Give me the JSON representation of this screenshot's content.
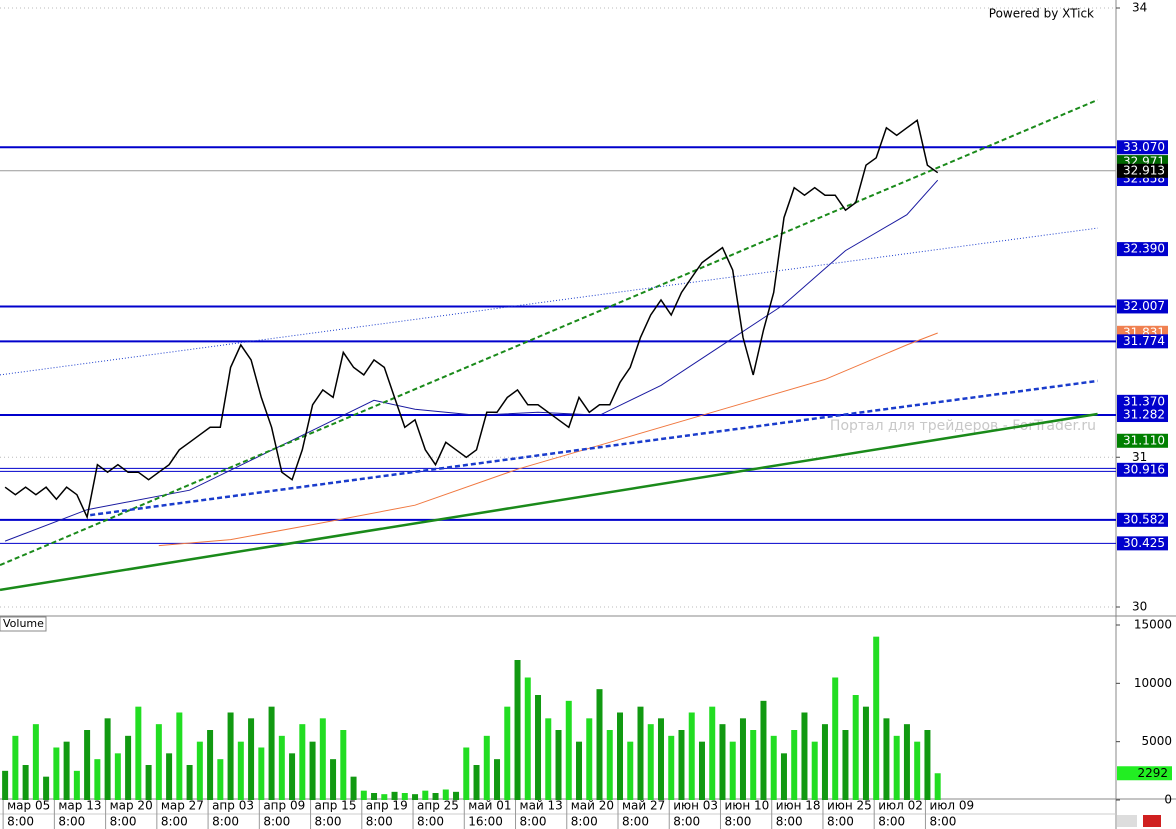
{
  "chart_data": {
    "type": "price-volume",
    "credit": "Powered by XTick",
    "watermark": "Портал для трейдеров - ForTrader.ru",
    "volume_title": "Volume",
    "xlim": [
      -0.5,
      108.4
    ],
    "ylim": [
      30,
      34
    ],
    "yticks": [
      30,
      31,
      34
    ],
    "categories": [
      "мар 05",
      null,
      null,
      null,
      null,
      "мар 13",
      null,
      null,
      null,
      null,
      "мар 20",
      null,
      null,
      null,
      null,
      "мар 27",
      null,
      null,
      null,
      null,
      "апр 03",
      null,
      null,
      null,
      null,
      "апр 09",
      null,
      null,
      null,
      null,
      "апр 15",
      null,
      null,
      null,
      null,
      "апр 19",
      null,
      null,
      null,
      null,
      "апр 25",
      null,
      null,
      null,
      null,
      "май 01",
      null,
      null,
      null,
      null,
      "май 13",
      null,
      null,
      null,
      null,
      "май 20",
      null,
      null,
      null,
      null,
      "май 27",
      null,
      null,
      null,
      null,
      "июн 03",
      null,
      null,
      null,
      null,
      "июн 10",
      null,
      null,
      null,
      null,
      "июн 18",
      null,
      null,
      null,
      null,
      "июн 25",
      null,
      null,
      null,
      null,
      "июл 02",
      null,
      null,
      null,
      null,
      "июл 09",
      null
    ],
    "times": [
      "8:00",
      null,
      null,
      null,
      null,
      "8:00",
      null,
      null,
      null,
      null,
      "8:00",
      null,
      null,
      null,
      null,
      "8:00",
      null,
      null,
      null,
      null,
      "8:00",
      null,
      null,
      null,
      null,
      "8:00",
      null,
      null,
      null,
      null,
      "8:00",
      null,
      null,
      null,
      null,
      "8:00",
      null,
      null,
      null,
      null,
      "8:00",
      null,
      null,
      null,
      null,
      "16:00",
      null,
      null,
      null,
      null,
      "8:00",
      null,
      null,
      null,
      null,
      "8:00",
      null,
      null,
      null,
      null,
      "8:00",
      null,
      null,
      null,
      null,
      "8:00",
      null,
      null,
      null,
      null,
      "8:00",
      null,
      null,
      null,
      null,
      "8:00",
      null,
      null,
      null,
      null,
      "8:00",
      null,
      null,
      null,
      null,
      "8:00",
      null,
      null,
      null,
      null,
      "8:00",
      null
    ],
    "price": {
      "color": "#000000",
      "values": [
        30.8,
        30.75,
        30.8,
        30.75,
        30.8,
        30.72,
        30.8,
        30.75,
        30.6,
        30.95,
        30.9,
        30.95,
        30.9,
        30.9,
        30.85,
        30.9,
        30.95,
        31.05,
        31.1,
        31.15,
        31.2,
        31.2,
        31.6,
        31.75,
        31.65,
        31.4,
        31.2,
        30.9,
        30.85,
        31.05,
        31.35,
        31.45,
        31.4,
        31.7,
        31.6,
        31.55,
        31.65,
        31.6,
        31.4,
        31.2,
        31.25,
        31.05,
        30.95,
        31.1,
        31.05,
        31.0,
        31.05,
        31.3,
        31.3,
        31.4,
        31.45,
        31.35,
        31.35,
        31.3,
        31.25,
        31.2,
        31.4,
        31.3,
        31.35,
        31.35,
        31.5,
        31.6,
        31.8,
        31.95,
        32.05,
        31.95,
        32.1,
        32.2,
        32.3,
        32.35,
        32.4,
        32.25,
        31.8,
        31.55,
        31.85,
        32.1,
        32.6,
        32.8,
        32.75,
        32.8,
        32.75,
        32.75,
        32.65,
        32.7,
        32.95,
        33.0,
        33.2,
        33.15,
        33.2,
        33.25,
        32.95,
        32.9
      ]
    },
    "overlays": [
      {
        "color": "#1a1aa0",
        "style": "solid",
        "width": 1,
        "x": [
          0,
          8,
          18,
          24,
          30,
          36,
          40,
          46,
          52,
          58,
          64,
          70,
          76,
          82,
          88,
          91
        ],
        "values": [
          30.44,
          30.65,
          30.78,
          30.98,
          31.18,
          31.38,
          31.32,
          31.28,
          31.3,
          31.28,
          31.48,
          31.75,
          32.02,
          32.38,
          32.62,
          32.85
        ]
      },
      {
        "color": "#f07840",
        "style": "solid",
        "width": 1,
        "x": [
          15,
          22,
          30,
          40,
          50,
          60,
          70,
          80,
          88,
          91
        ],
        "values": [
          30.41,
          30.45,
          30.55,
          30.68,
          30.92,
          31.12,
          31.32,
          31.52,
          31.75,
          31.83
        ]
      },
      {
        "color": "#1a8a1a",
        "style": "solid",
        "width": 2.5,
        "x": [
          -0.5,
          106.6
        ],
        "values": [
          30.114,
          31.289
        ]
      },
      {
        "color": "#1a8a1a",
        "style": "dashed",
        "width": 2,
        "x": [
          -0.5,
          106.6
        ],
        "values": [
          30.28,
          33.386
        ]
      },
      {
        "color": "#1a3ccc",
        "style": "dashed",
        "width": 2.5,
        "x": [
          8.3,
          106.6
        ],
        "values": [
          30.614,
          31.51
        ]
      },
      {
        "color": "#1a3ccc",
        "style": "dotted",
        "width": 1,
        "x": [
          -0.5,
          106.6
        ],
        "values": [
          31.55,
          32.53
        ]
      }
    ],
    "markers": [
      {
        "value": 33.07,
        "label": "33.070",
        "color": "#0000cc",
        "line": "solid"
      },
      {
        "value": 32.971,
        "color": "#006600"
      },
      {
        "value": 32.858,
        "color": "#0000cc"
      },
      {
        "value": 32.913,
        "color": "#000000",
        "line": "gray"
      },
      {
        "value": 32.39,
        "label": "32.390",
        "color": "#0000cc"
      },
      {
        "value": 32.007,
        "color": "#0000cc",
        "line": "solid"
      },
      {
        "value": 31.831,
        "color": "#f08050"
      },
      {
        "value": 31.774,
        "color": "#0000cc",
        "line": "solid"
      },
      {
        "value": 31.37,
        "label": "31.370",
        "color": "#0000cc"
      },
      {
        "value": 31.282,
        "color": "#0000cc",
        "line": "solid"
      },
      {
        "value": 31.11,
        "label": "31.110",
        "color": "#008000"
      },
      {
        "value": 30.916,
        "color": "#0000cc",
        "line": "double"
      },
      {
        "value": 30.582,
        "color": "#0000cc",
        "line": "solid"
      },
      {
        "value": 30.425,
        "color": "#0000cc",
        "line": "thin"
      }
    ],
    "volume": {
      "color": "#22dd22",
      "ylim": [
        0,
        15000
      ],
      "yticks": [
        0,
        5000,
        10000,
        15000
      ],
      "last_color": "#22ee22",
      "values": [
        2500,
        5500,
        3000,
        6500,
        2000,
        4500,
        5000,
        2500,
        6000,
        3500,
        7000,
        4000,
        5500,
        8000,
        3000,
        6500,
        4000,
        7500,
        3000,
        5000,
        6000,
        3500,
        7500,
        5000,
        7000,
        4500,
        8000,
        5500,
        4000,
        6500,
        5000,
        7000,
        3500,
        6000,
        2000,
        800,
        600,
        500,
        700,
        600,
        500,
        800,
        600,
        900,
        700,
        4500,
        3000,
        5500,
        3500,
        8000,
        12000,
        10500,
        9000,
        7000,
        6000,
        8500,
        5000,
        7000,
        9500,
        6000,
        7500,
        5000,
        8000,
        6500,
        7000,
        5500,
        6000,
        7500,
        5000,
        8000,
        6500,
        5000,
        7000,
        6000,
        8500,
        5500,
        4000,
        6000,
        7500,
        5000,
        6500,
        10500,
        6000,
        9000,
        8000,
        14000,
        7000,
        5500,
        6500,
        5000,
        6000,
        2292
      ]
    }
  }
}
